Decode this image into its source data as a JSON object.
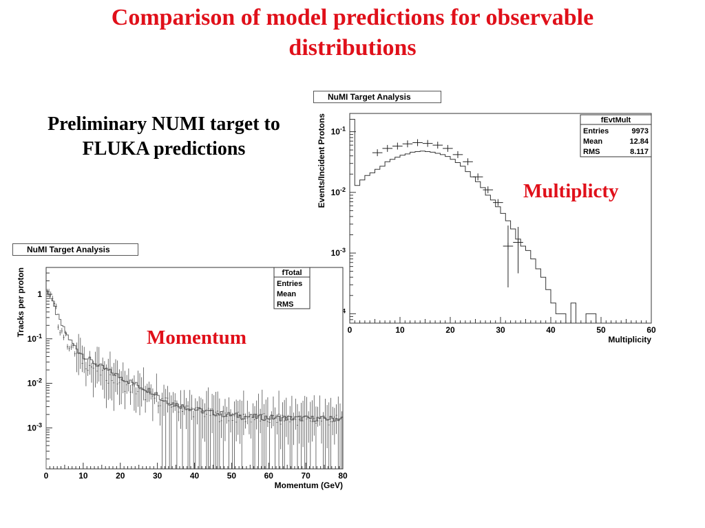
{
  "slide": {
    "title_line1": "Comparison of model predictions for observable",
    "title_line2": "distributions",
    "subtitle_line1": "Preliminary NUMI target to",
    "subtitle_line2": "FLUKA predictions",
    "mult_label": "Multiplicty",
    "mom_label": "Momentum",
    "title_color": "#e0101a"
  },
  "chart_data": [
    {
      "type": "line",
      "panel_title": "NuMI Target Analysis",
      "xlabel": "Multiplicity",
      "ylabel": "Events/Incident Protons",
      "log_y": true,
      "xlim": [
        0,
        60
      ],
      "ylim": [
        7e-05,
        0.2
      ],
      "x_ticks": [
        "0",
        "10",
        "20",
        "30",
        "40",
        "50",
        "60"
      ],
      "y_ticks": [
        {
          "base": "10",
          "exp": "-1",
          "value": 0.1
        },
        {
          "base": "10",
          "exp": "-2",
          "value": 0.01
        },
        {
          "base": "10",
          "exp": "-3",
          "value": 0.001
        },
        {
          "base": "10",
          "exp": "-4",
          "value": 0.0001
        }
      ],
      "stats": {
        "name": "fEvtMult",
        "rows": [
          {
            "label": "Entries",
            "value": "9973"
          },
          {
            "label": "Mean",
            "value": "12.84"
          },
          {
            "label": "RMS",
            "value": "8.117"
          }
        ]
      },
      "series": [
        {
          "style": "histogram",
          "x": [
            0,
            1,
            2,
            3,
            4,
            5,
            6,
            7,
            8,
            9,
            10,
            11,
            12,
            13,
            14,
            15,
            16,
            17,
            18,
            19,
            20,
            21,
            22,
            23,
            24,
            25,
            26,
            27,
            28,
            29,
            30,
            31,
            32,
            33,
            34,
            35,
            36,
            37,
            38,
            39,
            40,
            41,
            42,
            43,
            44,
            45,
            46,
            47,
            48,
            49,
            50,
            51,
            52,
            53,
            54,
            55,
            56,
            57,
            58,
            59
          ],
          "y": [
            0.16,
            0.013,
            0.016,
            0.019,
            0.021,
            0.024,
            0.027,
            0.032,
            0.035,
            0.038,
            0.041,
            0.043,
            0.046,
            0.047,
            0.048,
            0.047,
            0.046,
            0.044,
            0.042,
            0.039,
            0.035,
            0.031,
            0.027,
            0.022,
            0.018,
            0.015,
            0.012,
            0.009,
            0.0075,
            0.0058,
            0.0045,
            0.0034,
            0.0025,
            0.0017,
            0.0013,
            0.0011,
            0.0008,
            0.00055,
            0.0004,
            0.00025,
            0.00015,
            0.0001,
            0.0001,
            7e-05,
            0.00015,
            7e-05,
            7e-05,
            0.0001,
            0.0001,
            7e-05,
            7e-05,
            7e-05,
            7e-05,
            7e-05,
            7e-05,
            7e-05,
            7e-05,
            7e-05,
            7e-05,
            7e-05
          ]
        },
        {
          "style": "points",
          "x": [
            5.5,
            7.5,
            9.5,
            11.5,
            13.5,
            15.5,
            17.5,
            19.5,
            21.5,
            23.5,
            25.5,
            27.5,
            29.5,
            31.5,
            33.5
          ],
          "y": [
            0.045,
            0.053,
            0.058,
            0.063,
            0.066,
            0.064,
            0.06,
            0.053,
            0.042,
            0.032,
            0.018,
            0.011,
            0.0068,
            0.0013,
            0.0015
          ]
        }
      ]
    },
    {
      "type": "line",
      "panel_title": "NuMI Target Analysis",
      "xlabel": "Momentum (GeV)",
      "ylabel": "Tracks per proton",
      "log_y": true,
      "xlim": [
        0,
        80
      ],
      "ylim": [
        0.00012,
        4
      ],
      "x_ticks": [
        "0",
        "10",
        "20",
        "30",
        "40",
        "50",
        "60",
        "70",
        "80"
      ],
      "y_ticks": [
        {
          "base": "1",
          "exp": "",
          "value": 1
        },
        {
          "base": "10",
          "exp": "-1",
          "value": 0.1
        },
        {
          "base": "10",
          "exp": "-2",
          "value": 0.01
        },
        {
          "base": "10",
          "exp": "-3",
          "value": 0.001
        }
      ],
      "stats": {
        "name": "fTotal",
        "rows": [
          {
            "label": "Entries",
            "value": ""
          },
          {
            "label": "Mean",
            "value": ""
          },
          {
            "label": "RMS",
            "value": ""
          }
        ]
      }
    }
  ]
}
